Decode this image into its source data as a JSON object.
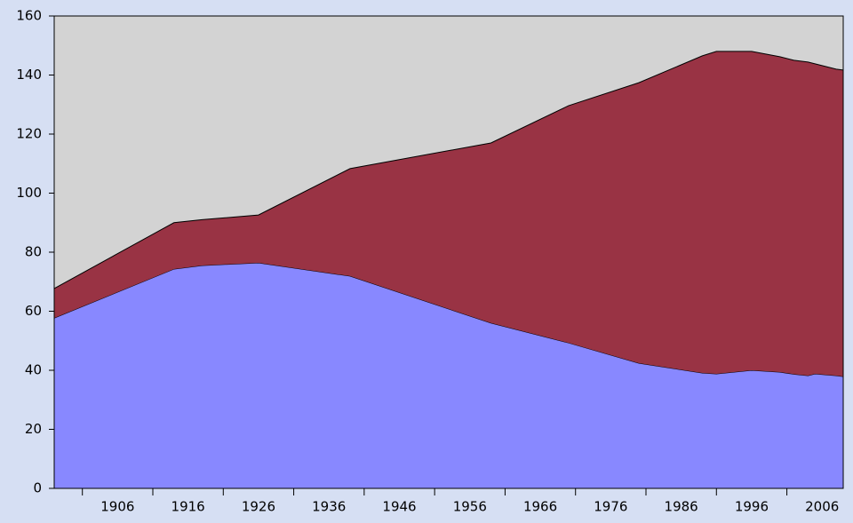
{
  "chart_data": {
    "type": "stacked-area",
    "x": [
      1897,
      1914,
      1918,
      1926,
      1939,
      1959,
      1970,
      1980,
      1989,
      1991,
      1996,
      2000,
      2002,
      2004,
      2005,
      2008,
      2009
    ],
    "series": [
      {
        "color": "#8888ff",
        "values": [
          57.7,
          74.3,
          75.5,
          76.4,
          71.9,
          56,
          49.3,
          42.4,
          39.1,
          38.8,
          40,
          39.4,
          38.7,
          38.2,
          38.8,
          38.2,
          37.9
        ]
      },
      {
        "color": "#993344",
        "values": [
          10,
          15.7,
          15.5,
          16.2,
          36.4,
          61,
          80.3,
          95,
          107.4,
          109.2,
          108,
          106.8,
          106.3,
          106.2,
          105,
          103.8,
          103.8
        ]
      }
    ],
    "plot_background": "#d3d3d3",
    "xlim": [
      1897,
      2009
    ],
    "xticks": [
      1906,
      1916,
      1926,
      1936,
      1946,
      1956,
      1966,
      1976,
      1986,
      1996,
      2006
    ],
    "xminorticks": [
      1901,
      1911,
      1921,
      1931,
      1941,
      1951,
      1961,
      1971,
      1981,
      1991,
      2001
    ],
    "ylim": [
      0,
      160
    ],
    "yticks": [
      0,
      20,
      40,
      60,
      80,
      100,
      120,
      140,
      160
    ]
  }
}
